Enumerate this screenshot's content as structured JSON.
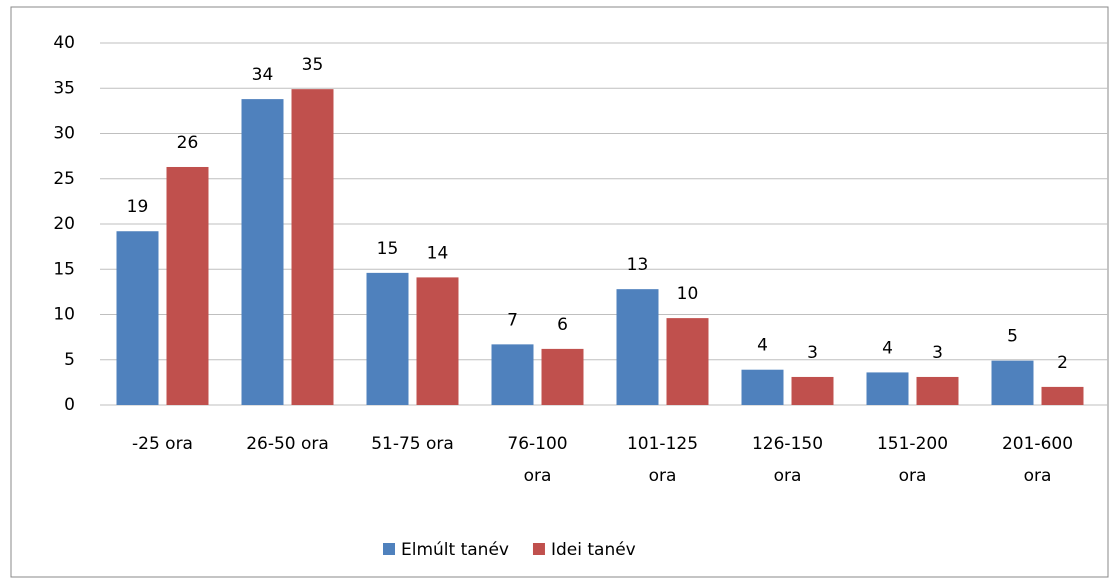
{
  "chart_data": {
    "type": "bar",
    "categories": [
      "-25 ora",
      "26-50 ora",
      "51-75 ora",
      "76-100 ora",
      "101-125 ora",
      "126-150 ora",
      "151-200 ora",
      "201-600 ora"
    ],
    "series": [
      {
        "name": "Elmúlt tanév",
        "color": "#4f81bd",
        "values": [
          19.2,
          33.8,
          14.6,
          6.7,
          12.8,
          3.9,
          3.6,
          4.9
        ],
        "value_labels": [
          "19",
          "34",
          "15",
          "7",
          "13",
          "4",
          "4",
          "5"
        ]
      },
      {
        "name": "Idei tanév",
        "color": "#c0504d",
        "values": [
          26.3,
          34.9,
          14.1,
          6.2,
          9.6,
          3.1,
          3.1,
          2.0
        ],
        "value_labels": [
          "26",
          "35",
          "14",
          "6",
          "10",
          "3",
          "3",
          "2"
        ]
      }
    ],
    "ylim": [
      0,
      40
    ],
    "yticks": [
      0,
      5,
      10,
      15,
      20,
      25,
      30,
      35,
      40
    ],
    "grid": true,
    "legend": "bottom"
  }
}
